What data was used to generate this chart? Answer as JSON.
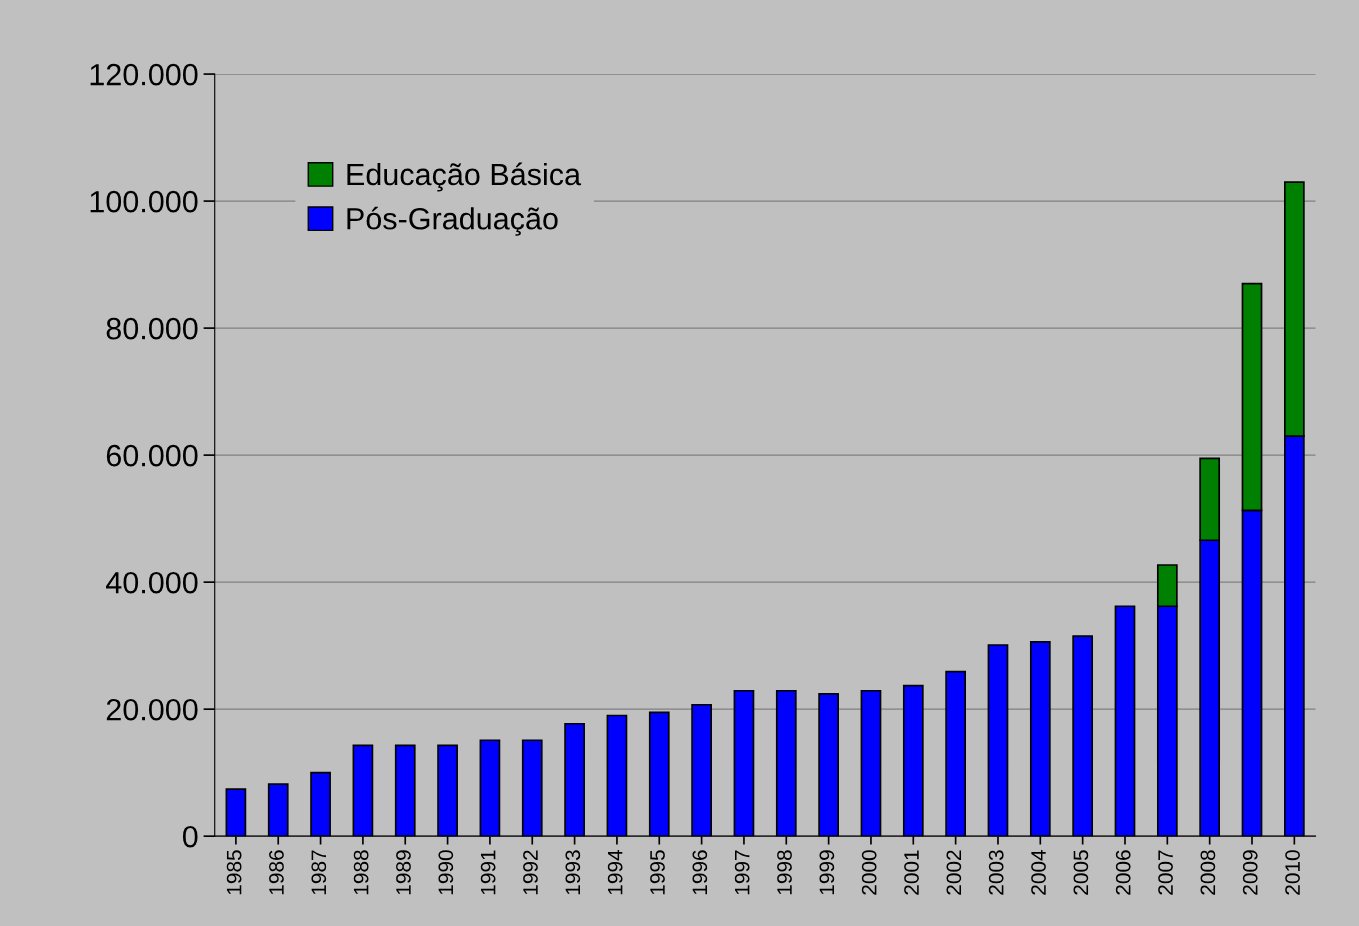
{
  "chart_data": {
    "type": "bar",
    "stacked": true,
    "categories": [
      "1985",
      "1986",
      "1987",
      "1988",
      "1989",
      "1990",
      "1991",
      "1992",
      "1993",
      "1994",
      "1995",
      "1996",
      "1997",
      "1998",
      "1999",
      "2000",
      "2001",
      "2002",
      "2003",
      "2004",
      "2005",
      "2006",
      "2007",
      "2008",
      "2009",
      "2010"
    ],
    "series": [
      {
        "name": "Pós-Graduação",
        "color": "#0000ff",
        "values": [
          7400,
          8200,
          10000,
          14300,
          14300,
          14300,
          15100,
          15100,
          17700,
          19000,
          19500,
          20700,
          22900,
          22900,
          22400,
          22900,
          23700,
          25900,
          30100,
          30600,
          31500,
          36200,
          36200,
          46600,
          51300,
          63000
        ]
      },
      {
        "name": "Educação Básica",
        "color": "#008000",
        "values": [
          null,
          null,
          null,
          null,
          null,
          null,
          null,
          null,
          null,
          null,
          null,
          null,
          null,
          null,
          null,
          null,
          null,
          null,
          null,
          null,
          null,
          null,
          6500,
          12900,
          35700,
          40000
        ]
      }
    ],
    "ylim": [
      0,
      120000
    ],
    "yticks": [
      0,
      {
        "value": 20000,
        "label": "20.000"
      },
      {
        "value": 40000,
        "label": "40.000"
      },
      {
        "value": 60000,
        "label": "60.000"
      },
      {
        "value": 80000,
        "label": "80.000"
      },
      {
        "value": 100000,
        "label": "100.000"
      },
      {
        "value": 120000,
        "label": "120.000"
      }
    ],
    "grid": "y",
    "legend": "top left"
  }
}
